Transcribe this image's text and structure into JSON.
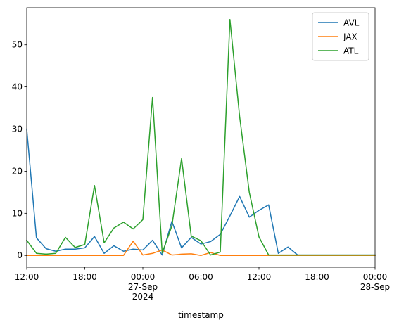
{
  "chart_data": {
    "type": "line",
    "xlabel": "timestamp",
    "ylabel": "",
    "title": "",
    "x_range": [
      "2024-09-26T12:00",
      "2024-09-28T00:00"
    ],
    "ylim": [
      -2.8,
      58.8
    ],
    "grid": false,
    "legend": "top-right",
    "x_ticks": [
      {
        "t": "2024-09-26T12:00",
        "lines": [
          "12:00"
        ]
      },
      {
        "t": "2024-09-26T18:00",
        "lines": [
          "18:00"
        ]
      },
      {
        "t": "2024-09-27T00:00",
        "lines": [
          "00:00",
          "27-Sep",
          "2024"
        ]
      },
      {
        "t": "2024-09-27T06:00",
        "lines": [
          "06:00"
        ]
      },
      {
        "t": "2024-09-27T12:00",
        "lines": [
          "12:00"
        ]
      },
      {
        "t": "2024-09-27T18:00",
        "lines": [
          "18:00"
        ]
      },
      {
        "t": "2024-09-28T00:00",
        "lines": [
          "00:00",
          "28-Sep"
        ]
      }
    ],
    "y_ticks": [
      0,
      10,
      20,
      30,
      40,
      50
    ],
    "x_start": "2024-09-26T12:00",
    "x_step_hours": 1,
    "series": [
      {
        "name": "AVL",
        "color": "#1f77b4",
        "values": [
          30,
          4.2,
          1.6,
          1.0,
          1.5,
          1.5,
          1.8,
          4.5,
          0.5,
          2.3,
          1.0,
          1.5,
          1.3,
          3.6,
          0.1,
          8.1,
          1.8,
          4.3,
          2.7,
          3.3,
          5.0,
          9.4,
          14.0,
          9.1,
          10.7,
          12.0,
          0.5,
          2.0,
          0.1,
          0.1,
          0.1,
          0.1,
          0.1,
          0.1,
          0.1,
          0.1,
          0.1
        ]
      },
      {
        "name": "JAX",
        "color": "#ff7f0e",
        "values": [
          0,
          0,
          0,
          0,
          0,
          0,
          0,
          0,
          0,
          0,
          0,
          3.4,
          0.1,
          0.5,
          1.3,
          0.1,
          0.3,
          0.4,
          0,
          0.7,
          0,
          0,
          0,
          0,
          0,
          0,
          0,
          0,
          0,
          0,
          0,
          0,
          0,
          0,
          0,
          0,
          0
        ]
      },
      {
        "name": "ATL",
        "color": "#2ca02c",
        "values": [
          3.6,
          0.5,
          0.3,
          0.5,
          4.3,
          1.9,
          2.6,
          16.6,
          3.0,
          6.5,
          7.9,
          6.3,
          8.5,
          37.5,
          0.6,
          7.0,
          23.0,
          4.6,
          3.5,
          0.1,
          0.8,
          56.0,
          33.0,
          15.0,
          4.4,
          0.1,
          0.1,
          0.1,
          0.1,
          0.1,
          0.1,
          0.1,
          0.1,
          0.1,
          0.1,
          0.1,
          0.1
        ]
      }
    ]
  }
}
